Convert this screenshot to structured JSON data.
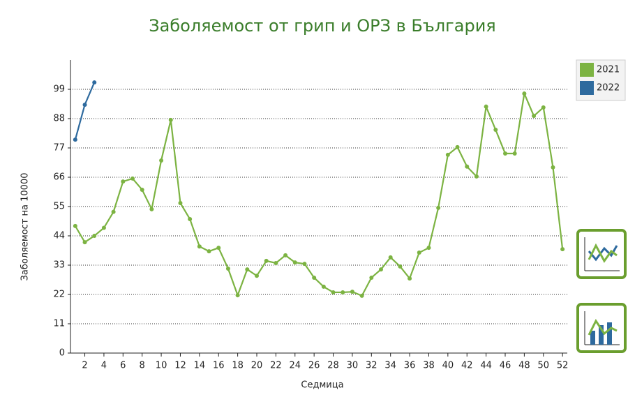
{
  "chart_data": {
    "type": "line",
    "title": "Заболяемост от грип и ОРЗ в България",
    "x_label": "Седмица",
    "y_label": "Заболяемост на 10000",
    "x": [
      1,
      2,
      3,
      4,
      5,
      6,
      7,
      8,
      9,
      10,
      11,
      12,
      13,
      14,
      15,
      16,
      17,
      18,
      19,
      20,
      21,
      22,
      23,
      24,
      25,
      26,
      27,
      28,
      29,
      30,
      31,
      32,
      33,
      34,
      35,
      36,
      37,
      38,
      39,
      40,
      41,
      42,
      43,
      44,
      45,
      46,
      47,
      48,
      49,
      50,
      51,
      52
    ],
    "series": [
      {
        "name": "2021",
        "color": "#7cb342",
        "values": [
          47.7,
          41.6,
          44,
          47,
          53,
          64.4,
          65.5,
          61.3,
          54,
          72.3,
          87.5,
          56.3,
          50.3,
          40,
          38.2,
          39.5,
          31.7,
          21.7,
          31.4,
          29,
          34.6,
          33.8,
          36.7,
          34,
          33.5,
          28.3,
          24.9,
          22.8,
          22.8,
          23,
          21.5,
          28.3,
          31.4,
          35.9,
          32.5,
          28,
          37.7,
          39.5,
          54.5,
          74.4,
          77.3,
          70,
          66.3,
          92.5,
          83.8,
          74.9,
          74.9,
          97.4,
          89,
          92.2,
          69.7,
          39
        ]
      },
      {
        "name": "2022",
        "color": "#2e6a9e",
        "values": [
          80.1,
          93.2,
          101.6,
          null,
          null,
          null,
          null,
          null,
          null,
          null,
          null,
          null,
          null,
          null,
          null,
          null,
          null,
          null,
          null,
          null,
          null,
          null,
          null,
          null,
          null,
          null,
          null,
          null,
          null,
          null,
          null,
          null,
          null,
          null,
          null,
          null,
          null,
          null,
          null,
          null,
          null,
          null,
          null,
          null,
          null,
          null,
          null,
          null,
          null,
          null,
          null,
          null
        ]
      }
    ],
    "xlim": [
      0.5,
      52.5
    ],
    "xticks": [
      2,
      4,
      6,
      8,
      10,
      12,
      14,
      16,
      18,
      20,
      22,
      24,
      26,
      28,
      30,
      32,
      34,
      36,
      38,
      40,
      42,
      44,
      46,
      48,
      50,
      52
    ],
    "ylim": [
      0,
      110
    ],
    "yticks": [
      0,
      11,
      22,
      33,
      44,
      55,
      66,
      77,
      88,
      99
    ],
    "grid": true,
    "legend": "top-right"
  }
}
